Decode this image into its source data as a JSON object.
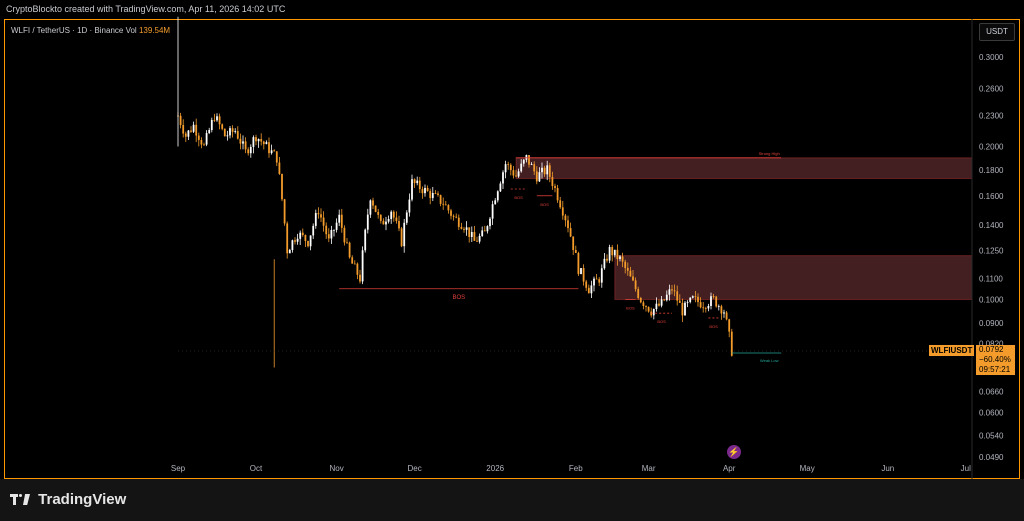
{
  "header": {
    "credit": "CryptoBlockto created with TradingView.com, Apr 11, 2026 14:02 UTC"
  },
  "legend": {
    "symbol_line": "WLFI / TetherUS · 1D · Binance",
    "vol_label": "Vol",
    "vol_value": "139.54M"
  },
  "price_axis": {
    "unit": "USDT"
  },
  "price_tag": {
    "symbol": "WLFIUSDT",
    "price": "0.0792",
    "change": "−60.40%",
    "countdown": "09:57:21"
  },
  "footer": {
    "brand": "TradingView"
  },
  "colors": {
    "accent": "#ff9800",
    "up": "#ffffff",
    "down": "#f39c2b",
    "zone": "#5a2a2e",
    "bos": "#e0403a",
    "weak_low": "#26a69a"
  },
  "chart_data": {
    "type": "candlestick",
    "symbol": "WLFIUSDT",
    "timeframe": "1D",
    "exchange": "Binance",
    "y_scale": "log",
    "ylim": [
      0.047,
      0.37
    ],
    "yticks": [
      0.3,
      0.26,
      0.23,
      0.2,
      0.18,
      0.16,
      0.14,
      0.125,
      0.11,
      0.1,
      0.09,
      0.082,
      0.066,
      0.06,
      0.054,
      0.049
    ],
    "ytick_labels": [
      "0.3000",
      "0.2600",
      "0.2300",
      "0.2000",
      "0.1800",
      "0.1600",
      "0.1400",
      "0.1250",
      "0.1100",
      "0.1000",
      "0.0900",
      "0.0820",
      "0.0660",
      "0.0600",
      "0.0540",
      "0.0490"
    ],
    "x_labels": [
      "Sep",
      "Oct",
      "Nov",
      "Dec",
      "2026",
      "Feb",
      "Mar",
      "Apr",
      "May",
      "Jun",
      "Jul"
    ],
    "close_path": [
      {
        "d": 0,
        "v": 0.23
      },
      {
        "d": 3,
        "v": 0.21
      },
      {
        "d": 6,
        "v": 0.22
      },
      {
        "d": 10,
        "v": 0.2
      },
      {
        "d": 14,
        "v": 0.23
      },
      {
        "d": 18,
        "v": 0.21
      },
      {
        "d": 22,
        "v": 0.215
      },
      {
        "d": 26,
        "v": 0.195
      },
      {
        "d": 30,
        "v": 0.21
      },
      {
        "d": 34,
        "v": 0.2
      },
      {
        "d": 38,
        "v": 0.19
      },
      {
        "d": 42,
        "v": 0.125
      },
      {
        "d": 46,
        "v": 0.135
      },
      {
        "d": 50,
        "v": 0.13
      },
      {
        "d": 54,
        "v": 0.15
      },
      {
        "d": 58,
        "v": 0.13
      },
      {
        "d": 62,
        "v": 0.145
      },
      {
        "d": 66,
        "v": 0.12
      },
      {
        "d": 70,
        "v": 0.11
      },
      {
        "d": 74,
        "v": 0.16
      },
      {
        "d": 78,
        "v": 0.14
      },
      {
        "d": 82,
        "v": 0.15
      },
      {
        "d": 86,
        "v": 0.13
      },
      {
        "d": 90,
        "v": 0.17
      },
      {
        "d": 94,
        "v": 0.165
      },
      {
        "d": 98,
        "v": 0.16
      },
      {
        "d": 102,
        "v": 0.155
      },
      {
        "d": 106,
        "v": 0.145
      },
      {
        "d": 110,
        "v": 0.14
      },
      {
        "d": 114,
        "v": 0.13
      },
      {
        "d": 118,
        "v": 0.135
      },
      {
        "d": 122,
        "v": 0.16
      },
      {
        "d": 126,
        "v": 0.185
      },
      {
        "d": 130,
        "v": 0.175
      },
      {
        "d": 134,
        "v": 0.19
      },
      {
        "d": 138,
        "v": 0.175
      },
      {
        "d": 142,
        "v": 0.18
      },
      {
        "d": 146,
        "v": 0.16
      },
      {
        "d": 150,
        "v": 0.14
      },
      {
        "d": 154,
        "v": 0.115
      },
      {
        "d": 158,
        "v": 0.105
      },
      {
        "d": 162,
        "v": 0.11
      },
      {
        "d": 166,
        "v": 0.125
      },
      {
        "d": 170,
        "v": 0.12
      },
      {
        "d": 174,
        "v": 0.11
      },
      {
        "d": 178,
        "v": 0.1
      },
      {
        "d": 182,
        "v": 0.095
      },
      {
        "d": 186,
        "v": 0.098
      },
      {
        "d": 190,
        "v": 0.105
      },
      {
        "d": 194,
        "v": 0.095
      },
      {
        "d": 198,
        "v": 0.1
      },
      {
        "d": 202,
        "v": 0.098
      },
      {
        "d": 206,
        "v": 0.1
      },
      {
        "d": 210,
        "v": 0.095
      },
      {
        "d": 213,
        "v": 0.0792
      }
    ],
    "annotations": [
      {
        "label": "BOS",
        "level": 0.105
      },
      {
        "label": "BOS",
        "level": 0.165
      },
      {
        "label": "BOS",
        "level": 0.16
      },
      {
        "label": "BOS",
        "level": 0.1
      },
      {
        "label": "BOS",
        "level": 0.094
      },
      {
        "label": "BOS",
        "level": 0.092
      },
      {
        "label": "Strong High",
        "level": 0.19
      },
      {
        "label": "Weak Low",
        "level": 0.0785
      }
    ],
    "zones": [
      {
        "type": "supply",
        "top": 0.19,
        "bottom": 0.173
      },
      {
        "type": "supply",
        "top": 0.122,
        "bottom": 0.1
      }
    ],
    "last_price": 0.0792,
    "change_pct": "-60.40%"
  }
}
